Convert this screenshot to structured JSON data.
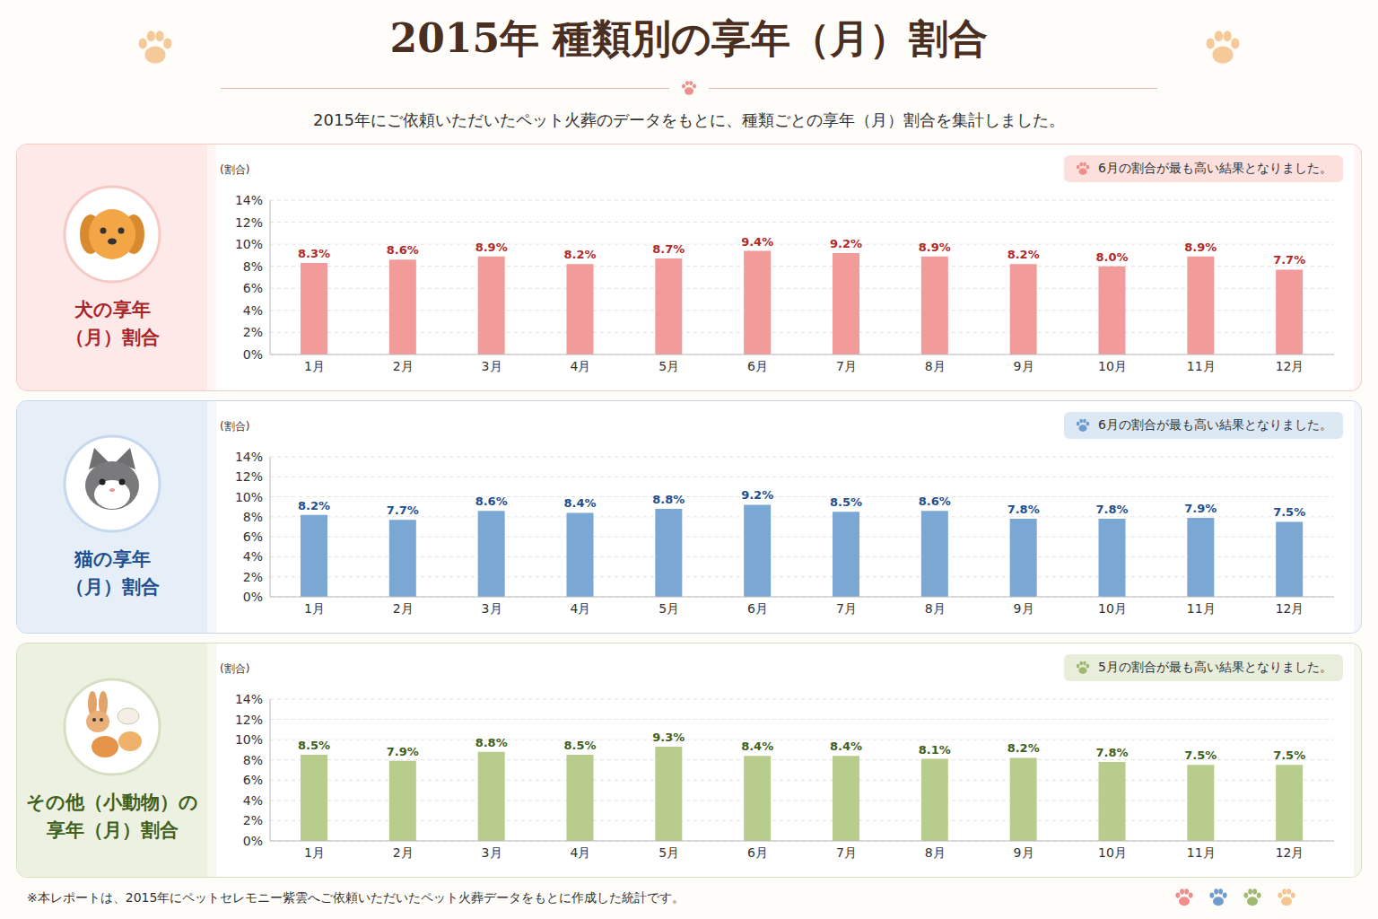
{
  "title": "2015年 種類別の享年（月）割合",
  "subtitle": "2015年にご依頼いただいたペット火葬のデータをもとに、種類ごとの享年（月）割合を集計しました。",
  "footnote": "※本レポートは、2015年にペットセレモニー紫雲へご依頼いただいたペット火葬データをもとに作成した統計です。",
  "chart_data": [
    {
      "type": "bar",
      "title": "犬の享年\n（月）割合",
      "annotation": "6月の割合が最も高い結果となりました。",
      "y_label": "(割合)",
      "categories": [
        "1月",
        "2月",
        "3月",
        "4月",
        "5月",
        "6月",
        "7月",
        "8月",
        "9月",
        "10月",
        "11月",
        "12月"
      ],
      "values": [
        8.3,
        8.6,
        8.9,
        8.2,
        8.7,
        9.4,
        9.2,
        8.9,
        8.2,
        8.0,
        8.9,
        7.7
      ],
      "value_labels": [
        "8.3%",
        "8.6%",
        "8.9%",
        "8.2%",
        "8.7%",
        "9.4%",
        "9.2%",
        "8.9%",
        "8.2%",
        "8.0%",
        "8.9%",
        "7.7%"
      ],
      "color": "#f19c9a",
      "ylim": [
        0,
        14
      ],
      "yticks": [
        {
          "value": 0,
          "label": "0%"
        },
        {
          "value": 2,
          "label": "2%"
        },
        {
          "value": 4,
          "label": "4%"
        },
        {
          "value": 6,
          "label": "6%"
        },
        {
          "value": 8,
          "label": "8%"
        },
        {
          "value": 10,
          "label": "10%"
        },
        {
          "value": 12,
          "label": "12%"
        },
        {
          "value": 14,
          "label": "14%"
        }
      ],
      "grid": true,
      "data_labels": true
    },
    {
      "type": "bar",
      "title": "猫の享年\n（月）割合",
      "annotation": "6月の割合が最も高い結果となりました。",
      "y_label": "(割合)",
      "categories": [
        "1月",
        "2月",
        "3月",
        "4月",
        "5月",
        "6月",
        "7月",
        "8月",
        "9月",
        "10月",
        "11月",
        "12月"
      ],
      "values": [
        8.2,
        7.7,
        8.6,
        8.4,
        8.8,
        9.2,
        8.5,
        8.6,
        7.8,
        7.8,
        7.9,
        7.5
      ],
      "value_labels": [
        "8.2%",
        "7.7%",
        "8.6%",
        "8.4%",
        "8.8%",
        "9.2%",
        "8.5%",
        "8.6%",
        "7.8%",
        "7.8%",
        "7.9%",
        "7.5%"
      ],
      "color": "#7ba7d5",
      "ylim": [
        0,
        14
      ],
      "yticks": [
        {
          "value": 0,
          "label": "0%"
        },
        {
          "value": 2,
          "label": "2%"
        },
        {
          "value": 4,
          "label": "4%"
        },
        {
          "value": 6,
          "label": "6%"
        },
        {
          "value": 8,
          "label": "8%"
        },
        {
          "value": 10,
          "label": "10%"
        },
        {
          "value": 12,
          "label": "12%"
        },
        {
          "value": 14,
          "label": "14%"
        }
      ],
      "grid": true,
      "data_labels": true
    },
    {
      "type": "bar",
      "title": "その他（小動物）の\n享年（月）割合",
      "annotation": "5月の割合が最も高い結果となりました。",
      "y_label": "(割合)",
      "categories": [
        "1月",
        "2月",
        "3月",
        "4月",
        "5月",
        "6月",
        "7月",
        "8月",
        "9月",
        "10月",
        "11月",
        "12月"
      ],
      "values": [
        8.5,
        7.9,
        8.8,
        8.5,
        9.3,
        8.4,
        8.4,
        8.1,
        8.2,
        7.8,
        7.5,
        7.5
      ],
      "value_labels": [
        "8.5%",
        "7.9%",
        "8.8%",
        "8.5%",
        "9.3%",
        "8.4%",
        "8.4%",
        "8.1%",
        "8.2%",
        "7.8%",
        "7.5%",
        "7.5%"
      ],
      "color": "#b8cc8c",
      "ylim": [
        0,
        14
      ],
      "yticks": [
        {
          "value": 0,
          "label": "0%"
        },
        {
          "value": 2,
          "label": "2%"
        },
        {
          "value": 4,
          "label": "4%"
        },
        {
          "value": 6,
          "label": "6%"
        },
        {
          "value": 8,
          "label": "8%"
        },
        {
          "value": 10,
          "label": "10%"
        },
        {
          "value": 12,
          "label": "12%"
        },
        {
          "value": 14,
          "label": "14%"
        }
      ],
      "grid": true,
      "data_labels": true
    }
  ]
}
